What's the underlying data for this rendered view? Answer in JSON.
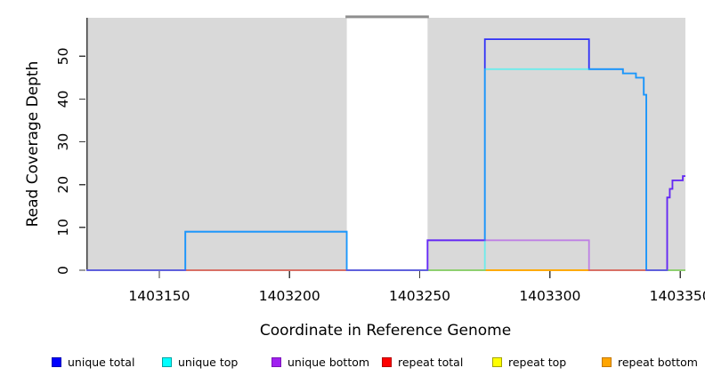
{
  "figure": {
    "background": "#FFFFFF",
    "panel_color": "#D9D9D9",
    "gap_bar_color": "#8E8E8E",
    "axis_color": "#3C3C3C",
    "text_color": "#000000"
  },
  "chart_data": {
    "type": "line",
    "subtype": "step-coverage",
    "title": "",
    "xlabel": "Coordinate in Reference Genome",
    "ylabel": "Read Coverage Depth",
    "xlim": [
      1403122,
      1403352
    ],
    "ylim": [
      0,
      59
    ],
    "x_ticks": [
      1403150,
      1403200,
      1403250,
      1403300,
      1403350
    ],
    "y_ticks": [
      0,
      10,
      20,
      30,
      40,
      50
    ],
    "grid": false,
    "legend_position": "bottom",
    "gap_region": {
      "start": 1403222,
      "end": 1403253
    },
    "series": [
      {
        "name": "repeat total",
        "color": "#FF0000",
        "opacity": 1.0,
        "steps": [
          [
            1403122,
            0
          ],
          [
            1403352,
            0
          ]
        ]
      },
      {
        "name": "repeat top",
        "color": "#FFFF00",
        "opacity": 1.0,
        "steps": [
          [
            1403122,
            0
          ],
          [
            1403352,
            0
          ]
        ]
      },
      {
        "name": "repeat bottom",
        "color": "#FFA500",
        "opacity": 1.0,
        "steps": [
          [
            1403122,
            0
          ],
          [
            1403352,
            0
          ]
        ]
      },
      {
        "name": "unique total",
        "color": "#0000FF",
        "opacity": 0.78,
        "steps": [
          [
            1403122,
            0
          ],
          [
            1403160,
            9
          ],
          [
            1403222,
            0
          ],
          [
            1403253,
            7
          ],
          [
            1403275,
            54
          ],
          [
            1403315,
            47
          ],
          [
            1403328,
            46
          ],
          [
            1403333,
            45
          ],
          [
            1403336,
            41
          ],
          [
            1403337,
            0
          ],
          [
            1403345,
            17
          ],
          [
            1403346,
            19
          ],
          [
            1403347,
            21
          ],
          [
            1403351,
            22
          ],
          [
            1403352,
            22
          ]
        ]
      },
      {
        "name": "unique top",
        "color": "#00FFFF",
        "opacity": 0.5,
        "steps": [
          [
            1403122,
            0
          ],
          [
            1403160,
            9
          ],
          [
            1403222,
            0
          ],
          [
            1403275,
            47
          ],
          [
            1403328,
            46
          ],
          [
            1403333,
            45
          ],
          [
            1403336,
            41
          ],
          [
            1403337,
            0
          ],
          [
            1403352,
            0
          ]
        ]
      },
      {
        "name": "unique bottom",
        "color": "#A020F0",
        "opacity": 0.48,
        "steps": [
          [
            1403122,
            0
          ],
          [
            1403253,
            7
          ],
          [
            1403315,
            0
          ],
          [
            1403345,
            17
          ],
          [
            1403346,
            19
          ],
          [
            1403347,
            21
          ],
          [
            1403351,
            22
          ],
          [
            1403352,
            22
          ]
        ]
      }
    ]
  },
  "legend": {
    "items": [
      {
        "label": "unique total",
        "fill": "#0000FF",
        "border": "#0000B3"
      },
      {
        "label": "unique top",
        "fill": "#00FFFF",
        "border": "#00A3A3"
      },
      {
        "label": "unique bottom",
        "fill": "#A020F0",
        "border": "#7A14B8"
      },
      {
        "label": "repeat total",
        "fill": "#FF0000",
        "border": "#B30000"
      },
      {
        "label": "repeat top",
        "fill": "#FFFF00",
        "border": "#A3A300"
      },
      {
        "label": "repeat bottom",
        "fill": "#FFA500",
        "border": "#C27800"
      }
    ]
  }
}
